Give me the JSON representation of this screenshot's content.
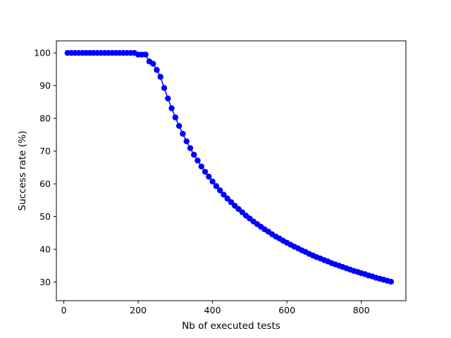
{
  "chart_data": {
    "type": "line",
    "title": "",
    "xlabel": "Nb of executed tests",
    "ylabel": "Success rate (%)",
    "xlim": [
      -20,
      920
    ],
    "ylim": [
      24.3,
      103.7
    ],
    "xticks": [
      0,
      200,
      400,
      600,
      800
    ],
    "yticks": [
      30,
      40,
      50,
      60,
      70,
      80,
      90,
      100
    ],
    "grid": false,
    "legend": "none",
    "series": [
      {
        "color": "#0000ff",
        "marker": "circle",
        "x": [
          10,
          20,
          30,
          40,
          50,
          60,
          70,
          80,
          90,
          100,
          110,
          120,
          130,
          140,
          150,
          160,
          170,
          180,
          190,
          200,
          210,
          220,
          230,
          240,
          250,
          260,
          270,
          280,
          290,
          300,
          310,
          320,
          330,
          340,
          350,
          360,
          370,
          380,
          390,
          400,
          410,
          420,
          430,
          440,
          450,
          460,
          470,
          480,
          490,
          500,
          510,
          520,
          530,
          540,
          550,
          560,
          570,
          580,
          590,
          600,
          610,
          620,
          630,
          640,
          650,
          660,
          670,
          680,
          690,
          700,
          710,
          720,
          730,
          740,
          750,
          760,
          770,
          780,
          790,
          800,
          810,
          820,
          830,
          840,
          850,
          860,
          870,
          880
        ],
        "y": [
          100,
          100,
          100,
          100,
          100,
          100,
          100,
          100,
          100,
          100,
          100,
          100,
          100,
          100,
          100,
          100,
          100,
          100,
          100,
          99.5,
          99.5,
          99.5,
          97.4,
          96.7,
          94.8,
          92.7,
          89.3,
          86.1,
          83.1,
          80.3,
          77.7,
          75.3,
          73.0,
          70.9,
          68.9,
          67.1,
          65.3,
          63.7,
          62.2,
          60.7,
          59.3,
          58.0,
          56.7,
          55.5,
          54.4,
          53.3,
          52.3,
          51.3,
          50.3,
          49.4,
          48.5,
          47.7,
          46.9,
          46.1,
          45.4,
          44.6,
          43.9,
          43.3,
          42.6,
          42.0,
          41.4,
          40.8,
          40.3,
          39.7,
          39.2,
          38.6,
          38.1,
          37.6,
          37.2,
          36.7,
          36.3,
          35.8,
          35.4,
          35.0,
          34.6,
          34.2,
          33.8,
          33.4,
          33.1,
          32.7,
          32.4,
          32.0,
          31.7,
          31.3,
          31.0,
          30.7,
          30.4,
          30.1
        ]
      }
    ]
  }
}
